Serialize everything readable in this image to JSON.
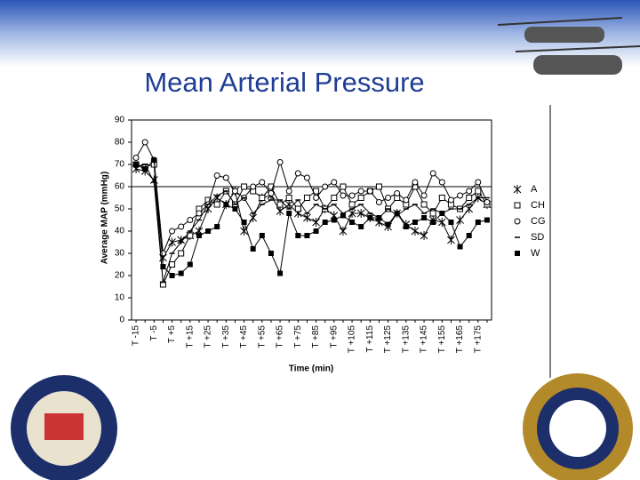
{
  "chart_data": {
    "type": "line",
    "title": "Mean Arterial Pressure",
    "y_label": "Average MAP (mmHg)",
    "x_label": "Time (min)",
    "categories": [
      "T -15",
      null,
      "T -5",
      null,
      "T +5",
      null,
      "T +15",
      null,
      "T +25",
      null,
      "T +35",
      null,
      "T +45",
      null,
      "T +55",
      null,
      "T +65",
      null,
      "T +75",
      null,
      "T +85",
      null,
      "T +95",
      null,
      "T +105",
      null,
      "T +115",
      null,
      "T +125",
      null,
      "T +135",
      null,
      "T +145",
      null,
      "T +155",
      null,
      "T +165",
      null,
      "T +175",
      null
    ],
    "ylim": [
      0,
      90
    ],
    "yticks": [
      0,
      10,
      20,
      30,
      40,
      50,
      60,
      70,
      80,
      90
    ],
    "hline": 60,
    "series": [
      {
        "name": "A",
        "color": "#000000",
        "marker": "asterisk",
        "values": [
          68,
          67,
          63,
          28,
          35,
          36,
          38,
          40,
          50,
          55,
          52,
          58,
          40,
          46,
          55,
          56,
          49,
          52,
          48,
          46,
          44,
          50,
          47,
          40,
          48,
          48,
          46,
          44,
          42,
          48,
          43,
          40,
          38,
          45,
          44,
          36,
          45,
          50,
          55,
          52
        ]
      },
      {
        "name": "CH",
        "color": "#000000",
        "marker": "square",
        "values": [
          70,
          69,
          70,
          16,
          25,
          30,
          38,
          50,
          54,
          52,
          58,
          52,
          60,
          58,
          55,
          60,
          52,
          55,
          50,
          55,
          58,
          50,
          55,
          60,
          52,
          55,
          58,
          60,
          50,
          55,
          52,
          60,
          52,
          48,
          55,
          52,
          50,
          55,
          58,
          52
        ]
      },
      {
        "name": "CG",
        "color": "#000000",
        "marker": "circle",
        "values": [
          73,
          80,
          72,
          30,
          40,
          42,
          45,
          48,
          52,
          65,
          64,
          58,
          55,
          60,
          62,
          57,
          71,
          58,
          66,
          64,
          55,
          60,
          62,
          56,
          56,
          58,
          58,
          53,
          55,
          57,
          54,
          62,
          56,
          66,
          62,
          54,
          56,
          58,
          62,
          53
        ]
      },
      {
        "name": "SD",
        "color": "#000000",
        "marker": "dash",
        "values": [
          69,
          70,
          62,
          17,
          30,
          35,
          40,
          45,
          52,
          56,
          58,
          52,
          55,
          48,
          52,
          54,
          54,
          50,
          54,
          48,
          52,
          50,
          52,
          48,
          50,
          52,
          48,
          46,
          50,
          47,
          50,
          52,
          48,
          50,
          48,
          50,
          50,
          52,
          55,
          55
        ]
      },
      {
        "name": "W",
        "color": "#000000",
        "marker": "filled-square",
        "values": [
          70,
          68,
          72,
          24,
          20,
          21,
          25,
          38,
          40,
          42,
          52,
          50,
          44,
          32,
          38,
          30,
          21,
          48,
          38,
          38,
          40,
          44,
          45,
          47,
          44,
          42,
          46,
          46,
          43,
          48,
          42,
          44,
          46,
          44,
          48,
          44,
          33,
          38,
          44,
          45
        ]
      }
    ]
  }
}
